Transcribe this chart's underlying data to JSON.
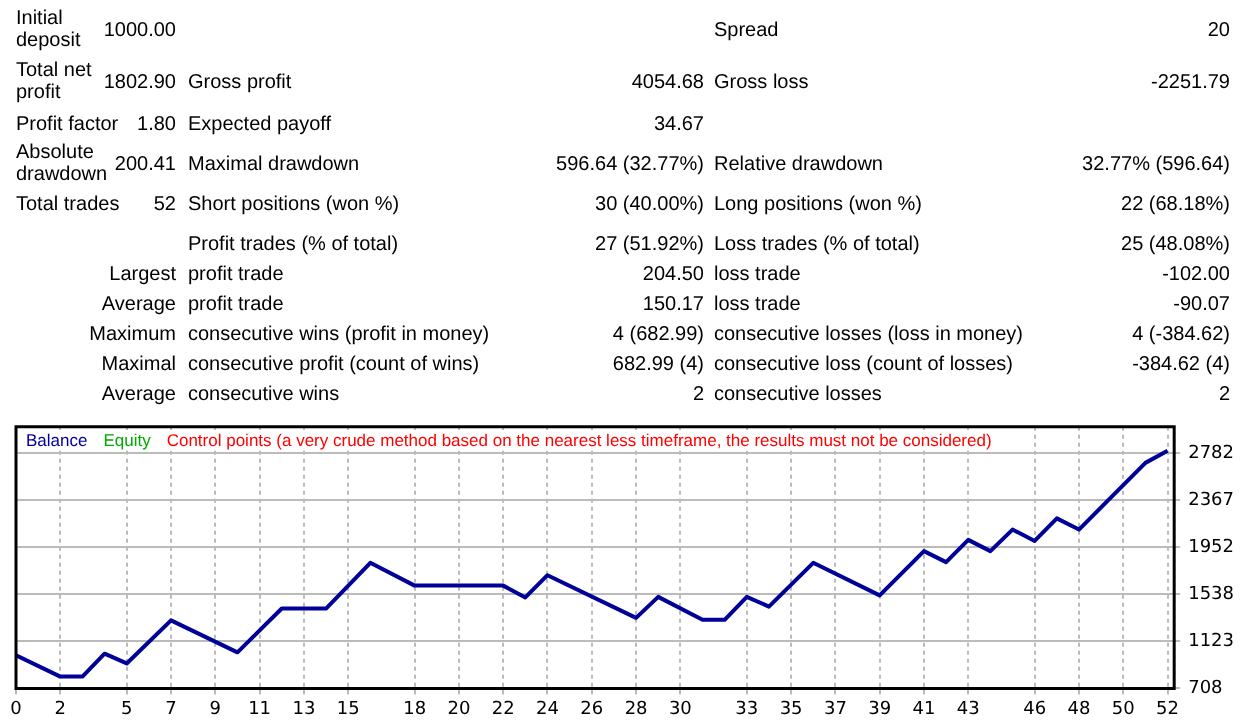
{
  "chart_data": {
    "type": "line",
    "annotations": [
      "Initial deposit",
      "1000.00",
      "Spread",
      "20",
      "Total net profit",
      "1802.90",
      "Gross profit",
      "4054.68",
      "Gross loss",
      "-2251.79",
      "Profit factor",
      "1.80",
      "Expected payoff",
      "34.67",
      "Absolute drawdown",
      "200.41",
      "Maximal drawdown",
      "596.64 (32.77%)",
      "Relative drawdown",
      "32.77% (596.64)",
      "Total trades",
      "52",
      "Short positions (won %)",
      "30 (40.00%)",
      "Long positions (won %)",
      "22 (68.18%)",
      "Profit trades (% of total)",
      "27 (51.92%)",
      "Loss trades (% of total)",
      "25 (48.08%)",
      "Largest",
      "profit trade",
      "204.50",
      "loss trade",
      "-102.00",
      "Average",
      "profit trade",
      "150.17",
      "loss trade",
      "-90.07",
      "Maximum",
      "consecutive wins (profit in money)",
      "4 (682.99)",
      "consecutive losses (loss in money)",
      "4 (-384.62)",
      "Maximal",
      "consecutive profit (count of wins)",
      "682.99 (4)",
      "consecutive loss (count of losses)",
      "-384.62 (4)",
      "Average",
      "consecutive wins",
      "2",
      "consecutive losses",
      "2"
    ],
    "series": [
      {
        "name": "Balance",
        "color": "#000099",
        "x": [
          0,
          2,
          3,
          4,
          5,
          7,
          10,
          12,
          14,
          16,
          18,
          22,
          23,
          24,
          28,
          29,
          31,
          32,
          33,
          34,
          36,
          39,
          41,
          42,
          43,
          44,
          45,
          46,
          47,
          48,
          51,
          52
        ],
        "values": [
          1000,
          812,
          812,
          1014,
          928,
          1308,
          1026,
          1412,
          1412,
          1815,
          1614,
          1614,
          1510,
          1706,
          1330,
          1515,
          1313,
          1313,
          1515,
          1429,
          1815,
          1528,
          1918,
          1821,
          2017,
          1918,
          2108,
          2008,
          2207,
          2108,
          2696,
          2803
        ]
      },
      {
        "name": "Equity",
        "color": "#00aa00"
      },
      {
        "name": "Control points (a very crude method based on the nearest less timeframe, the results must not be considered)",
        "color": "#ff0000"
      }
    ],
    "xlim": [
      0,
      52.3
    ],
    "xticks": [
      0,
      2,
      5,
      7,
      9,
      11,
      13,
      15,
      18,
      20,
      22,
      24,
      26,
      28,
      30,
      33,
      35,
      37,
      39,
      41,
      43,
      46,
      48,
      50,
      52
    ],
    "ylim": [
      708,
      3014
    ],
    "yticks": [
      708,
      1123,
      1538,
      1952,
      2367,
      2782
    ],
    "grid": true,
    "legend": "top left",
    "marker": "none",
    "line_style": "solid"
  }
}
